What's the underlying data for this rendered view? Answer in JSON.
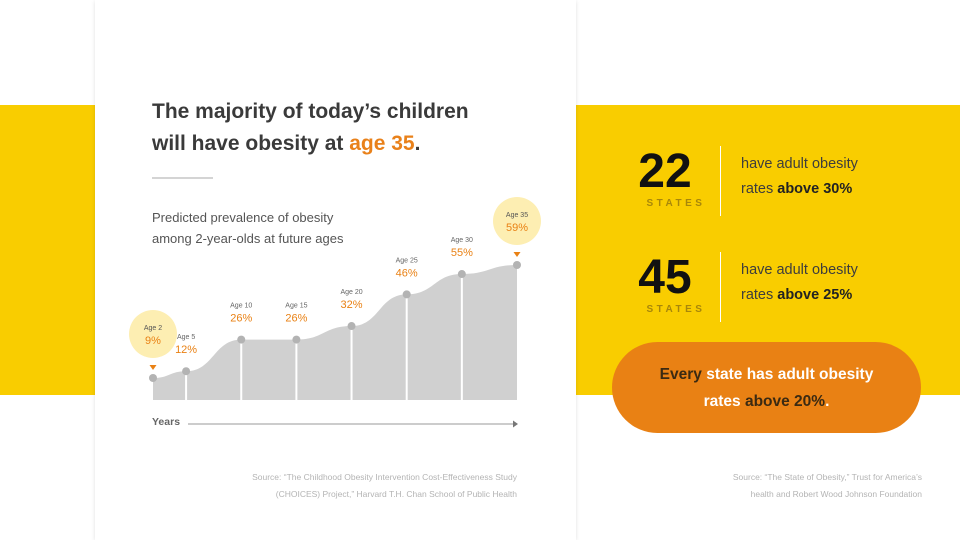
{
  "headline": {
    "line1": "The majority of today’s children",
    "line2_pre": "will have obesity at ",
    "highlight": "age 35",
    "line2_post": "."
  },
  "subtitle": {
    "line1": "Predicted prevalence of obesity",
    "line2": "among 2-year-olds at future ages"
  },
  "colors": {
    "band": "#f9cd00",
    "accent": "#e98114",
    "area": "#d0d0d0",
    "marker": "#b3b3b3",
    "bubble": "#fdeeb2"
  },
  "chart_data": {
    "type": "area",
    "x": [
      2,
      5,
      10,
      15,
      20,
      25,
      30,
      35
    ],
    "values": [
      9,
      12,
      26,
      26,
      32,
      46,
      55,
      59
    ],
    "point_labels": [
      "Age 2",
      "Age 5",
      "Age 10",
      "Age 15",
      "Age 20",
      "Age 25",
      "Age 30",
      "Age 35"
    ],
    "value_labels": [
      "9%",
      "12%",
      "26%",
      "26%",
      "32%",
      "46%",
      "55%",
      "59%"
    ],
    "highlighted_points": [
      "Age 2",
      "Age 35"
    ],
    "xlabel": "Years",
    "ylabel": "",
    "grid": false
  },
  "source_left": {
    "line1": "Source: “The Childhood Obesity Intervention Cost-Effectiveness Study",
    "line2": "(CHOICES) Project,” Harvard T.H. Chan School of Public Health"
  },
  "stats": [
    {
      "number": "22",
      "unit": "STATES",
      "desc_pre": "have adult obesity",
      "desc_mid": "rates ",
      "desc_bold": "above 30%"
    },
    {
      "number": "45",
      "unit": "STATES",
      "desc_pre": "have adult obesity",
      "desc_mid": "rates ",
      "desc_bold": "above 25%"
    }
  ],
  "callout": {
    "every": "Every",
    "rest_line1": " state has adult obesity",
    "line2_pre": "rates ",
    "bold": "above 20%",
    "post": "."
  },
  "source_right": {
    "line1": "Source: “The State of Obesity,” Trust for America’s",
    "line2": "health and Robert Wood Johnson Foundation"
  }
}
